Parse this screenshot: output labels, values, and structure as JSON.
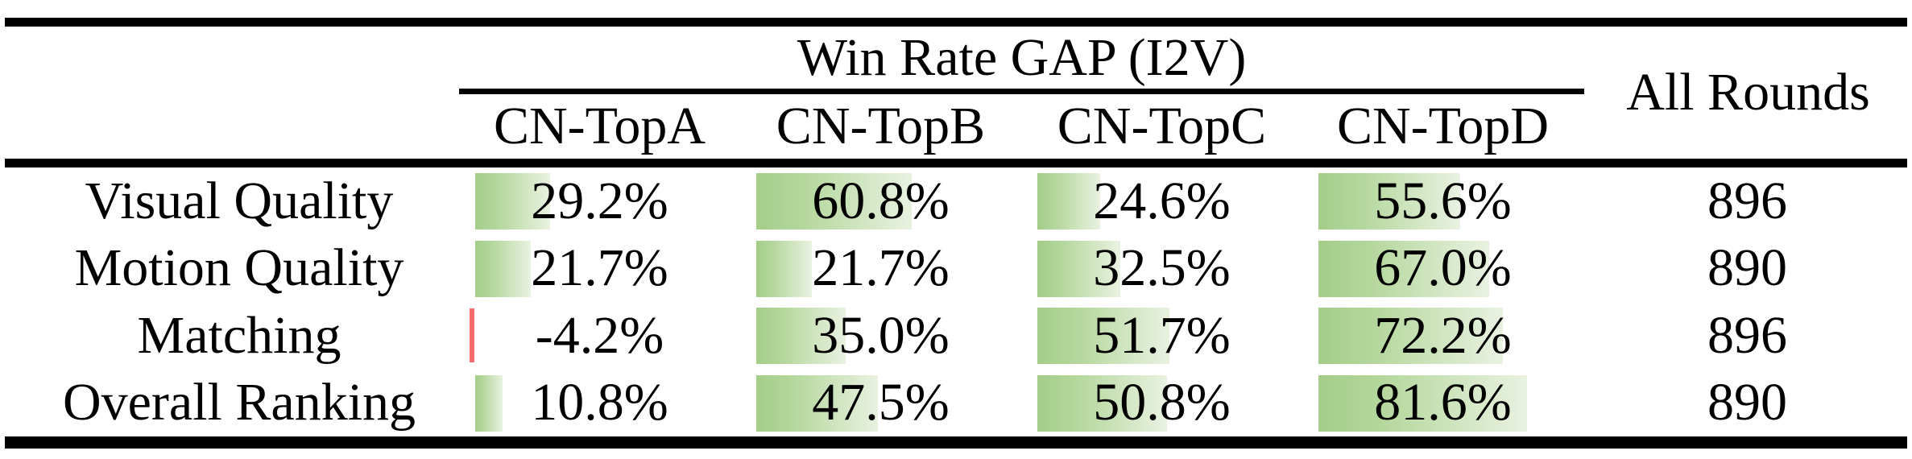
{
  "table": {
    "title_header": "Win Rate GAP (I2V)",
    "all_rounds_header": "All Rounds",
    "columns": [
      "CN-TopA",
      "CN-TopB",
      "CN-TopC",
      "CN-TopD"
    ],
    "rows": [
      {
        "label": "Visual Quality",
        "values": [
          29.2,
          60.8,
          24.6,
          55.6
        ],
        "display": [
          "29.2%",
          "60.8%",
          "24.6%",
          "55.6%"
        ],
        "all_rounds": "896"
      },
      {
        "label": "Motion Quality",
        "values": [
          21.7,
          21.7,
          32.5,
          67.0
        ],
        "display": [
          "21.7%",
          "21.7%",
          "32.5%",
          "67.0%"
        ],
        "all_rounds": "890"
      },
      {
        "label": "Matching",
        "values": [
          -4.2,
          35.0,
          51.7,
          72.2
        ],
        "display": [
          "-4.2%",
          "35.0%",
          "51.7%",
          "72.2%"
        ],
        "all_rounds": "896"
      },
      {
        "label": "Overall Ranking",
        "values": [
          10.8,
          47.5,
          50.8,
          81.6
        ],
        "display": [
          "10.8%",
          "47.5%",
          "50.8%",
          "81.6%"
        ],
        "all_rounds": "890"
      }
    ],
    "colors": {
      "bar_positive_start": "#a3cd89",
      "bar_positive_mid": "#b4d79c",
      "bar_positive_end": "#e9f2e1",
      "bar_negative": "#f66d6d",
      "rule": "#000000",
      "text": "#000000"
    }
  },
  "chart_data": {
    "type": "table",
    "title": "Win Rate GAP (I2V)",
    "categories": [
      "Visual Quality",
      "Motion Quality",
      "Matching",
      "Overall Ranking"
    ],
    "series": [
      {
        "name": "CN-TopA",
        "values": [
          29.2,
          21.7,
          -4.2,
          10.8
        ]
      },
      {
        "name": "CN-TopB",
        "values": [
          60.8,
          21.7,
          35.0,
          47.5
        ]
      },
      {
        "name": "CN-TopC",
        "values": [
          24.6,
          32.5,
          51.7,
          50.8
        ]
      },
      {
        "name": "CN-TopD",
        "values": [
          55.6,
          67.0,
          72.2,
          81.6
        ]
      }
    ],
    "all_rounds": [
      896,
      890,
      896,
      890
    ],
    "unit": "%",
    "bar_style": "in-cell green gradient data bars, red bar for negative values"
  }
}
